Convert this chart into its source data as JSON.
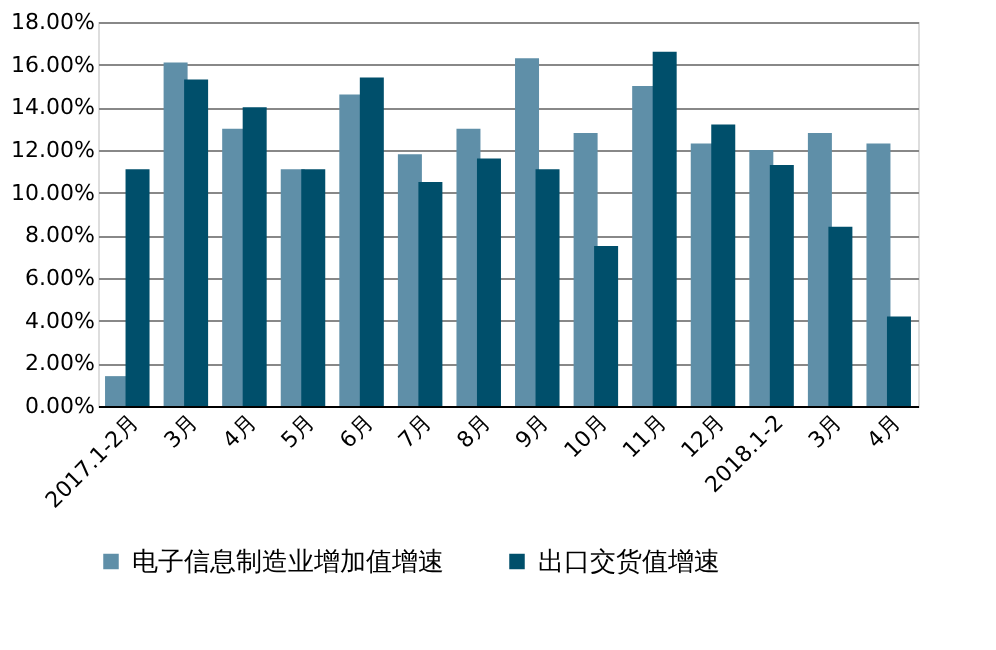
{
  "chart_data": {
    "type": "bar",
    "categories": [
      "2017.1-2月",
      "3月",
      "4月",
      "5月",
      "6月",
      "7月",
      "8月",
      "9月",
      "10月",
      "11月",
      "12月",
      "2018.1-2",
      "3月",
      "4月"
    ],
    "series": [
      {
        "name": "电子信息制造业增加值增速",
        "color": "#5f8fa8",
        "values": [
          1.4,
          16.1,
          13.0,
          11.1,
          14.6,
          11.8,
          13.0,
          16.3,
          12.8,
          15.0,
          12.3,
          12.0,
          12.8,
          12.3
        ]
      },
      {
        "name": "出口交货值增速",
        "color": "#004f6b",
        "values": [
          11.1,
          15.3,
          14.0,
          11.1,
          15.4,
          10.5,
          11.6,
          11.1,
          7.5,
          16.6,
          13.2,
          11.3,
          8.4,
          4.2
        ]
      }
    ],
    "ylim": [
      0,
      18
    ],
    "yticks": [
      {
        "value": 0,
        "label": "0.00%"
      },
      {
        "value": 2,
        "label": "2.00%"
      },
      {
        "value": 4,
        "label": "4.00%"
      },
      {
        "value": 6,
        "label": "6.00%"
      },
      {
        "value": 8,
        "label": "8.00%"
      },
      {
        "value": 10,
        "label": "10.00%"
      },
      {
        "value": 12,
        "label": "12.00%"
      },
      {
        "value": 14,
        "label": "14.00%"
      },
      {
        "value": 16,
        "label": "16.00%"
      },
      {
        "value": 18,
        "label": "18.00%"
      }
    ],
    "grid": "y",
    "legend": "bottom"
  }
}
